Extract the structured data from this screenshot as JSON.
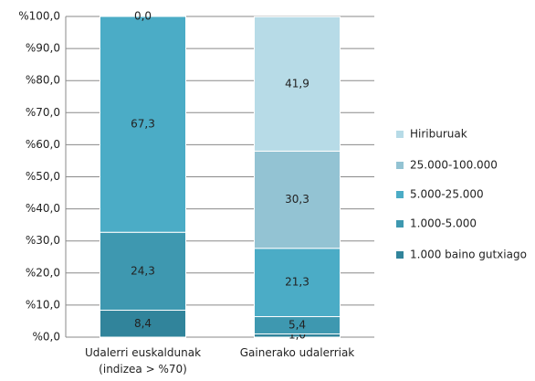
{
  "chart_data": {
    "type": "stacked_bar",
    "categories": [
      "Udalerri euskaldunak (indizea > %70)",
      "Gainerako udalerriak"
    ],
    "series": [
      {
        "name": "1.000 baino gutxiago",
        "color": "#31849b",
        "values": [
          8.4,
          1.0
        ],
        "value_labels": [
          "8,4",
          "1,0"
        ]
      },
      {
        "name": "1.000-5.000",
        "color": "#3e98b0",
        "values": [
          24.3,
          5.4
        ],
        "value_labels": [
          "24,3",
          "5,4"
        ]
      },
      {
        "name": "5.000-25.000",
        "color": "#4bacc6",
        "values": [
          67.3,
          21.3
        ],
        "value_labels": [
          "67,3",
          "21,3"
        ]
      },
      {
        "name": "25.000-100.000",
        "color": "#93c3d3",
        "values": [
          0,
          30.3
        ],
        "value_labels": [
          null,
          "30,3"
        ]
      },
      {
        "name": "Hiriburuak",
        "color": "#b7dbe7",
        "values": [
          0.0,
          41.9
        ],
        "value_labels": [
          "0,0",
          "41,9"
        ]
      }
    ],
    "ylim": [
      0,
      100
    ],
    "yticks": [
      {
        "value": 0,
        "label": "%0,0"
      },
      {
        "value": 10,
        "label": "%10,0"
      },
      {
        "value": 20,
        "label": "%20,0"
      },
      {
        "value": 30,
        "label": "%30,0"
      },
      {
        "value": 40,
        "label": "%40,0"
      },
      {
        "value": 50,
        "label": "%50,0"
      },
      {
        "value": 60,
        "label": "%60,0"
      },
      {
        "value": 70,
        "label": "%70,0"
      },
      {
        "value": 80,
        "label": "%80,0"
      },
      {
        "value": 90,
        "label": "%90,0"
      },
      {
        "value": 100,
        "label": "%100,0"
      }
    ],
    "grid": true,
    "legend": "right"
  }
}
